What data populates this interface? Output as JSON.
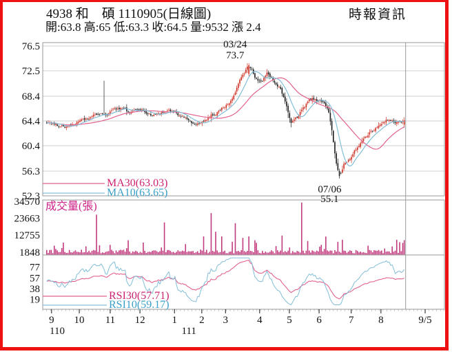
{
  "header": {
    "title": "4938 和　碩 1110905(日線圖)",
    "quote_line": "開:63.8 高:65 低:63.3 收:64.5 量:9532 漲 2.4",
    "source": "時報資訊"
  },
  "colors": {
    "frame": "#ee1111",
    "text": "#111111",
    "grid": "#cfcfcf",
    "axis": "#9a9a9a",
    "candle_up": "#cc2a1e",
    "candle_down": "#1a1a1a",
    "ma30": "#e2628e",
    "ma10": "#82bed8",
    "ma30_text": "#cc2270",
    "ma10_text": "#3a9ec8",
    "volume_bar": "#c23b7e",
    "volume_text": "#cc2288"
  },
  "chart_data": {
    "type": "candlestick",
    "title": "4938 和碩 1110905 日線圖",
    "panels": [
      "price",
      "volume",
      "rsi"
    ],
    "legend": {
      "ma30": "MA30(63.03)",
      "ma10": "MA10(63.65)",
      "volume": "成交量(張)",
      "rsi30": "RSI30(57.71)",
      "rsi10": "RSI10(59.17)"
    },
    "price_axis": {
      "tick_labels": [
        76.5,
        72.5,
        68.4,
        64.4,
        60.4,
        56.3,
        52.3
      ]
    },
    "volume_axis": {
      "tick_labels": [
        34570,
        23663,
        12755,
        1848
      ],
      "max": 34570
    },
    "rsi_axis": {
      "tick_labels": [
        77,
        57,
        38,
        19
      ]
    },
    "x_axis": {
      "month_ticks": [
        {
          "label": "9",
          "f": 0.022
        },
        {
          "label": "10",
          "f": 0.091
        },
        {
          "label": "11",
          "f": 0.168
        },
        {
          "label": "12",
          "f": 0.242
        },
        {
          "label": "1",
          "f": 0.328
        },
        {
          "label": "2",
          "f": 0.396
        },
        {
          "label": "3",
          "f": 0.455
        },
        {
          "label": "4",
          "f": 0.54
        },
        {
          "label": "5",
          "f": 0.614
        },
        {
          "label": "6",
          "f": 0.688
        },
        {
          "label": "7",
          "f": 0.768
        },
        {
          "label": "8",
          "f": 0.842
        },
        {
          "label": "9/5",
          "f": 0.952
        }
      ],
      "year_ticks": [
        {
          "label": "110",
          "f": 0.036
        },
        {
          "label": "111",
          "f": 0.364
        }
      ]
    },
    "days": 238,
    "data_start_f": 0.01,
    "data_end_f": 0.9,
    "price_keypoints": [
      [
        0.01,
        64.2
      ],
      [
        0.04,
        63.7
      ],
      [
        0.06,
        63.5
      ],
      [
        0.091,
        64.2
      ],
      [
        0.12,
        65.0
      ],
      [
        0.151,
        65.4
      ],
      [
        0.168,
        65.8
      ],
      [
        0.195,
        66.4
      ],
      [
        0.215,
        65.8
      ],
      [
        0.242,
        66.1
      ],
      [
        0.27,
        65.4
      ],
      [
        0.3,
        65.9
      ],
      [
        0.328,
        66.0
      ],
      [
        0.352,
        64.9
      ],
      [
        0.375,
        63.9
      ],
      [
        0.396,
        64.4
      ],
      [
        0.42,
        65.3
      ],
      [
        0.442,
        66.2
      ],
      [
        0.46,
        67.0
      ],
      [
        0.48,
        69.3
      ],
      [
        0.5,
        72.2
      ],
      [
        0.515,
        73.4
      ],
      [
        0.528,
        71.7
      ],
      [
        0.545,
        71.0
      ],
      [
        0.558,
        72.2
      ],
      [
        0.572,
        71.3
      ],
      [
        0.59,
        69.7
      ],
      [
        0.605,
        67.2
      ],
      [
        0.618,
        64.4
      ],
      [
        0.632,
        64.9
      ],
      [
        0.647,
        66.3
      ],
      [
        0.662,
        67.5
      ],
      [
        0.676,
        67.9
      ],
      [
        0.69,
        67.6
      ],
      [
        0.702,
        67.1
      ],
      [
        0.712,
        65.8
      ],
      [
        0.72,
        62.8
      ],
      [
        0.728,
        58.8
      ],
      [
        0.734,
        56.5
      ],
      [
        0.74,
        55.4
      ],
      [
        0.75,
        57.3
      ],
      [
        0.762,
        58.2
      ],
      [
        0.775,
        59.4
      ],
      [
        0.79,
        60.9
      ],
      [
        0.805,
        61.9
      ],
      [
        0.82,
        62.7
      ],
      [
        0.835,
        63.4
      ],
      [
        0.85,
        64.0
      ],
      [
        0.862,
        64.7
      ],
      [
        0.875,
        64.1
      ],
      [
        0.888,
        64.2
      ],
      [
        0.9,
        64.5
      ]
    ],
    "events": {
      "peak": {
        "date_label": "03/24",
        "value_label": "73.7",
        "f": 0.515,
        "high": 73.7
      },
      "trough": {
        "date_label": "07/06",
        "value_label": "55.1",
        "f": 0.74,
        "low": 55.1
      },
      "spike_wick": {
        "f": 0.151,
        "high": 70.9
      }
    },
    "volume_spikes": [
      [
        0.052,
        8000
      ],
      [
        0.135,
        26000
      ],
      [
        0.168,
        6500
      ],
      [
        0.214,
        9500
      ],
      [
        0.25,
        8000
      ],
      [
        0.304,
        21000
      ],
      [
        0.355,
        7000
      ],
      [
        0.4,
        12000
      ],
      [
        0.418,
        27000
      ],
      [
        0.432,
        15000
      ],
      [
        0.445,
        12000
      ],
      [
        0.48,
        20500
      ],
      [
        0.5,
        11000
      ],
      [
        0.515,
        12000
      ],
      [
        0.53,
        9500
      ],
      [
        0.595,
        12500
      ],
      [
        0.645,
        33800
      ],
      [
        0.66,
        9000
      ],
      [
        0.703,
        11900
      ],
      [
        0.733,
        8500
      ],
      [
        0.745,
        9800
      ],
      [
        0.81,
        6000
      ],
      [
        0.88,
        9800
      ],
      [
        0.9,
        9532
      ]
    ],
    "last": {
      "open": 63.8,
      "high": 65,
      "low": 63.3,
      "close": 64.5,
      "volume": 9532,
      "change": 2.4
    }
  }
}
